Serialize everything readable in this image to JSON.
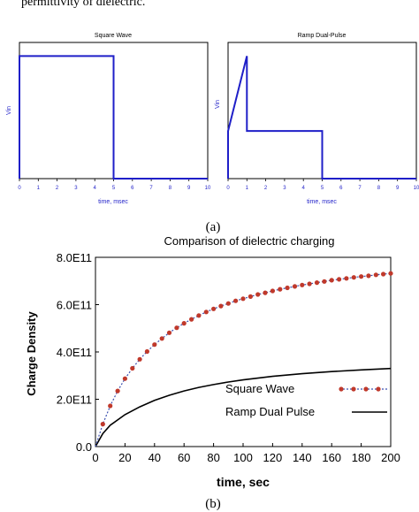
{
  "header_text": "permittivity of dielectric.",
  "caption_a": "(a)",
  "caption_b": "(b)",
  "chart_data": [
    {
      "type": "line",
      "title": "Square Wave",
      "xlabel": "time, msec",
      "ylabel": "Vin",
      "xlim": [
        0,
        10
      ],
      "ylim": [
        0,
        1
      ],
      "x_ticks": [
        "0",
        "1",
        "2",
        "3",
        "4",
        "5",
        "6",
        "7",
        "8",
        "9",
        "10"
      ],
      "series": [
        {
          "color": "#1f1fc8",
          "x": [
            0,
            0,
            5,
            5,
            10
          ],
          "y": [
            0,
            0.9,
            0.9,
            0,
            0
          ]
        }
      ]
    },
    {
      "type": "line",
      "title": "Ramp Dual-Pulse",
      "xlabel": "time, msec",
      "ylabel": "Vin",
      "xlim": [
        0,
        10
      ],
      "ylim": [
        0,
        1
      ],
      "x_ticks": [
        "0",
        "1",
        "2",
        "3",
        "4",
        "5",
        "6",
        "7",
        "8",
        "9",
        "10"
      ],
      "series": [
        {
          "color": "#1f1fc8",
          "x": [
            0,
            0,
            1,
            1,
            5,
            5,
            10
          ],
          "y": [
            0,
            0.35,
            0.9,
            0.35,
            0.35,
            0,
            0
          ]
        }
      ]
    },
    {
      "type": "line",
      "title": "Comparison of dielectric charging",
      "xlabel": "time, sec",
      "ylabel": "Charge Density",
      "xlim": [
        0,
        200
      ],
      "ylim": [
        0,
        800000000000.0
      ],
      "x_ticks": [
        "0",
        "20",
        "40",
        "60",
        "80",
        "100",
        "120",
        "140",
        "160",
        "180",
        "200"
      ],
      "y_ticks": [
        "0.0",
        "2.0E11",
        "4.0E11",
        "6.0E11",
        "8.0E11"
      ],
      "legend_position": "bottom-right",
      "series": [
        {
          "name": "Square  Wave",
          "color": "#c0392b",
          "marker": "circle",
          "line_style": "dotted-blue",
          "x": [
            0,
            5,
            10,
            15,
            20,
            25,
            30,
            35,
            40,
            45,
            50,
            55,
            60,
            65,
            70,
            75,
            80,
            85,
            90,
            95,
            100,
            105,
            110,
            115,
            120,
            125,
            130,
            135,
            140,
            145,
            150,
            155,
            160,
            165,
            170,
            175,
            180,
            185,
            190,
            195,
            200
          ],
          "y": [
            0,
            95000000000.0,
            172000000000.0,
            235000000000.0,
            287000000000.0,
            331000000000.0,
            369000000000.0,
            402000000000.0,
            431000000000.0,
            457000000000.0,
            481000000000.0,
            502000000000.0,
            521000000000.0,
            538000000000.0,
            554000000000.0,
            569000000000.0,
            582000000000.0,
            594000000000.0,
            605000000000.0,
            616000000000.0,
            625000000000.0,
            634000000000.0,
            643000000000.0,
            650000000000.0,
            658000000000.0,
            665000000000.0,
            671000000000.0,
            677000000000.0,
            683000000000.0,
            688000000000.0,
            693000000000.0,
            698000000000.0,
            703000000000.0,
            707000000000.0,
            711000000000.0,
            715000000000.0,
            719000000000.0,
            722000000000.0,
            726000000000.0,
            729000000000.0,
            732000000000.0
          ]
        },
        {
          "name": "Ramp Dual Pulse",
          "color": "#000000",
          "x": [
            0,
            5,
            10,
            20,
            30,
            40,
            50,
            60,
            70,
            80,
            90,
            100,
            120,
            140,
            160,
            180,
            200
          ],
          "y": [
            0,
            55000000000.0,
            90000000000.0,
            135000000000.0,
            168000000000.0,
            195000000000.0,
            217000000000.0,
            235000000000.0,
            250000000000.0,
            262000000000.0,
            273000000000.0,
            282000000000.0,
            297000000000.0,
            308000000000.0,
            317000000000.0,
            324000000000.0,
            330000000000.0
          ]
        }
      ]
    }
  ]
}
